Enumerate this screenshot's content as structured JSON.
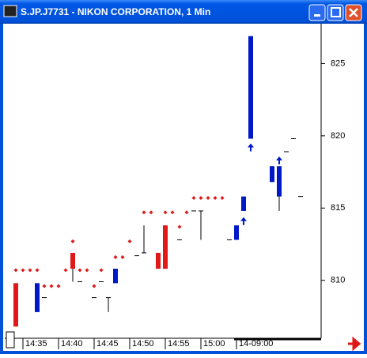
{
  "chart_data": {
    "type": "candlestick",
    "title": "S.JP.J7731 - NIKON CORPORATION, 1 Min",
    "categories": [
      null,
      "14:35",
      null,
      null,
      null,
      null,
      "14:40",
      null,
      null,
      null,
      null,
      "14:45",
      null,
      null,
      null,
      null,
      "14:50",
      null,
      null,
      null,
      null,
      "14:55",
      null,
      null,
      null,
      null,
      "15:00",
      null,
      null,
      null,
      null,
      "14-09:00",
      null,
      null,
      null,
      null,
      null,
      null,
      null,
      null,
      null
    ],
    "open": [
      809.8,
      null,
      null,
      807.8,
      808.8,
      null,
      null,
      null,
      811.9,
      809.9,
      null,
      808.8,
      809.9,
      808.8,
      809.8,
      null,
      null,
      811.7,
      811.9,
      null,
      811.9,
      813.8,
      null,
      812.8,
      null,
      814.8,
      814.8,
      null,
      null,
      null,
      812.8,
      812.8,
      814.8,
      819.8,
      null,
      null,
      816.8,
      815.8,
      818.9,
      819.8,
      815.8
    ],
    "high": [
      809.8,
      null,
      null,
      809.8,
      808.8,
      null,
      null,
      null,
      811.9,
      809.9,
      null,
      808.8,
      809.9,
      808.8,
      810.8,
      null,
      null,
      811.7,
      813.8,
      null,
      811.9,
      813.8,
      null,
      812.8,
      null,
      814.8,
      814.8,
      null,
      null,
      null,
      812.8,
      813.8,
      815.8,
      826.9,
      null,
      null,
      817.9,
      817.9,
      818.9,
      819.8,
      815.8
    ],
    "low": [
      806.8,
      null,
      null,
      807.8,
      808.8,
      null,
      null,
      null,
      809.9,
      809.9,
      null,
      808.8,
      809.9,
      807.8,
      809.8,
      null,
      null,
      811.7,
      811.9,
      null,
      810.8,
      810.8,
      null,
      812.8,
      null,
      814.8,
      812.8,
      null,
      null,
      null,
      812.8,
      812.8,
      814.8,
      819.8,
      null,
      null,
      816.8,
      814.8,
      818.9,
      819.8,
      815.8
    ],
    "close": [
      806.8,
      null,
      null,
      809.8,
      808.8,
      null,
      null,
      null,
      810.8,
      809.9,
      null,
      808.8,
      809.9,
      808.8,
      810.8,
      null,
      null,
      811.7,
      811.9,
      null,
      810.8,
      810.8,
      null,
      812.8,
      null,
      814.8,
      814.8,
      null,
      null,
      null,
      812.8,
      813.8,
      815.8,
      826.9,
      null,
      null,
      817.9,
      817.9,
      818.9,
      819.8,
      815.8
    ],
    "sar": [
      810.7,
      810.7,
      810.7,
      810.7,
      809.6,
      809.6,
      809.6,
      810.7,
      812.7,
      810.7,
      810.7,
      809.6,
      810.7,
      null,
      811.6,
      811.6,
      812.7,
      null,
      814.7,
      814.7,
      null,
      814.7,
      814.7,
      813.7,
      814.7,
      815.7,
      815.7,
      815.7,
      815.7,
      815.7,
      null,
      null,
      null,
      null,
      null,
      null,
      null,
      null,
      null,
      null,
      null
    ],
    "signals": [
      null,
      null,
      null,
      null,
      null,
      null,
      null,
      null,
      null,
      null,
      null,
      null,
      null,
      null,
      null,
      null,
      null,
      null,
      null,
      null,
      null,
      null,
      null,
      null,
      null,
      null,
      null,
      null,
      null,
      null,
      null,
      null,
      814.1,
      819.2,
      null,
      null,
      null,
      818.3,
      null,
      null,
      null
    ],
    "up_color": "#0018c8",
    "down_color": "#e01818",
    "sar_color": "#e01818",
    "ylim": [
      806.7,
      827.76
    ],
    "yticks": [
      810,
      815,
      820,
      825
    ]
  }
}
